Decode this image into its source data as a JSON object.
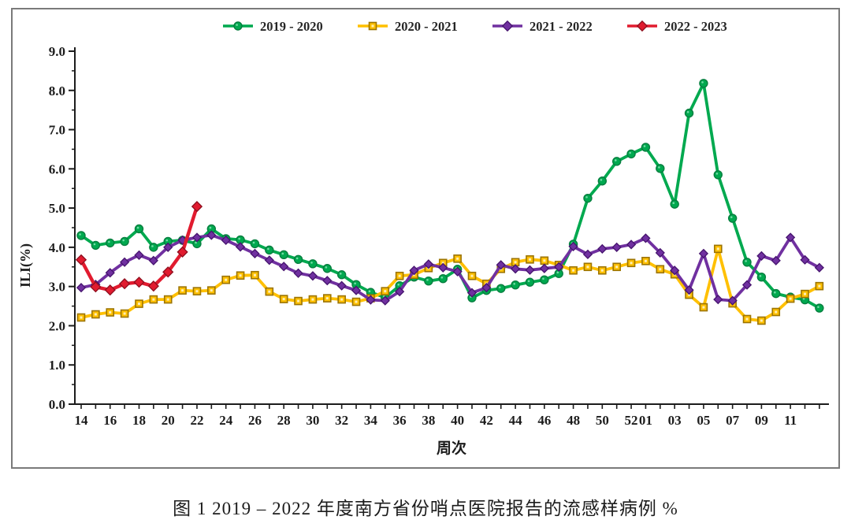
{
  "figure": {
    "caption": "图 1  2019 – 2022 年度南方省份哨点医院报告的流感样病例 %"
  },
  "chart_data": {
    "type": "line",
    "title": "",
    "xlabel": "周次",
    "ylabel": "ILI(%)",
    "ylim": [
      0.0,
      9.0
    ],
    "grid": false,
    "legend_position": "top-center",
    "ytick_labels": [
      "0.0",
      "1.0",
      "2.0",
      "3.0",
      "4.0",
      "5.0",
      "6.0",
      "7.0",
      "8.0",
      "9.0"
    ],
    "weeks": [
      "14",
      "15",
      "16",
      "17",
      "18",
      "19",
      "20",
      "21",
      "22",
      "23",
      "24",
      "25",
      "26",
      "27",
      "28",
      "29",
      "30",
      "31",
      "32",
      "33",
      "34",
      "35",
      "36",
      "37",
      "38",
      "39",
      "40",
      "41",
      "42",
      "43",
      "44",
      "45",
      "46",
      "47",
      "48",
      "49",
      "50",
      "51",
      "52",
      "01",
      "02",
      "03",
      "04",
      "05",
      "06",
      "07",
      "08",
      "09",
      "10",
      "11",
      "12",
      "13"
    ],
    "x_label_indices": [
      0,
      2,
      4,
      6,
      8,
      10,
      12,
      14,
      16,
      18,
      20,
      22,
      24,
      26,
      28,
      30,
      32,
      34,
      36,
      38,
      39,
      41,
      43,
      45,
      47,
      49
    ],
    "series": [
      {
        "name": "2019 - 2020",
        "color": "#00A94F",
        "marker": "circle",
        "marker_stroke": "#067E3F",
        "values": [
          4.3,
          4.05,
          4.11,
          4.15,
          4.47,
          4.0,
          4.15,
          4.18,
          4.09,
          4.47,
          4.22,
          4.19,
          4.09,
          3.93,
          3.81,
          3.69,
          3.58,
          3.46,
          3.3,
          3.05,
          2.85,
          2.72,
          3.02,
          3.24,
          3.14,
          3.2,
          3.44,
          2.71,
          2.9,
          2.95,
          3.04,
          3.11,
          3.17,
          3.33,
          4.08,
          5.25,
          5.69,
          6.19,
          6.38,
          6.55,
          6.01,
          5.1,
          7.42,
          8.18,
          5.85,
          4.74,
          3.62,
          3.24,
          2.82,
          2.73,
          2.66,
          2.45
        ]
      },
      {
        "name": "2020 - 2021",
        "color": "#FFC000",
        "marker": "square",
        "marker_stroke": "#9C7400",
        "values": [
          2.21,
          2.29,
          2.34,
          2.31,
          2.56,
          2.67,
          2.67,
          2.9,
          2.88,
          2.9,
          3.17,
          3.28,
          3.29,
          2.87,
          2.68,
          2.63,
          2.67,
          2.7,
          2.67,
          2.61,
          2.7,
          2.88,
          3.27,
          3.3,
          3.47,
          3.6,
          3.71,
          3.27,
          3.07,
          3.45,
          3.62,
          3.69,
          3.66,
          3.55,
          3.41,
          3.5,
          3.41,
          3.5,
          3.6,
          3.65,
          3.44,
          3.31,
          2.79,
          2.47,
          3.96,
          2.57,
          2.17,
          2.13,
          2.35,
          2.69,
          2.81,
          3.01
        ]
      },
      {
        "name": "2021 - 2022",
        "color": "#7030A0",
        "marker": "diamond",
        "marker_stroke": "#46146E",
        "values": [
          2.97,
          3.05,
          3.35,
          3.62,
          3.8,
          3.66,
          4.0,
          4.18,
          4.25,
          4.31,
          4.18,
          4.01,
          3.84,
          3.67,
          3.51,
          3.34,
          3.27,
          3.15,
          3.02,
          2.9,
          2.66,
          2.64,
          2.87,
          3.41,
          3.57,
          3.48,
          3.38,
          2.84,
          2.97,
          3.55,
          3.45,
          3.42,
          3.46,
          3.5,
          4.02,
          3.82,
          3.96,
          4.0,
          4.07,
          4.23,
          3.86,
          3.41,
          2.91,
          3.84,
          2.67,
          2.64,
          3.04,
          3.78,
          3.66,
          4.25,
          3.68,
          3.48
        ]
      },
      {
        "name": "2022 - 2023",
        "color": "#E11B2F",
        "marker": "diamond",
        "marker_stroke": "#8E0E1E",
        "values": [
          3.68,
          2.99,
          2.91,
          3.07,
          3.11,
          3.01,
          3.37,
          3.88,
          5.04,
          null,
          null,
          null,
          null,
          null,
          null,
          null,
          null,
          null,
          null,
          null,
          null,
          null,
          null,
          null,
          null,
          null,
          null,
          null,
          null,
          null,
          null,
          null,
          null,
          null,
          null,
          null,
          null,
          null,
          null,
          null,
          null,
          null,
          null,
          null,
          null,
          null,
          null,
          null,
          null,
          null,
          null,
          null
        ]
      }
    ]
  }
}
